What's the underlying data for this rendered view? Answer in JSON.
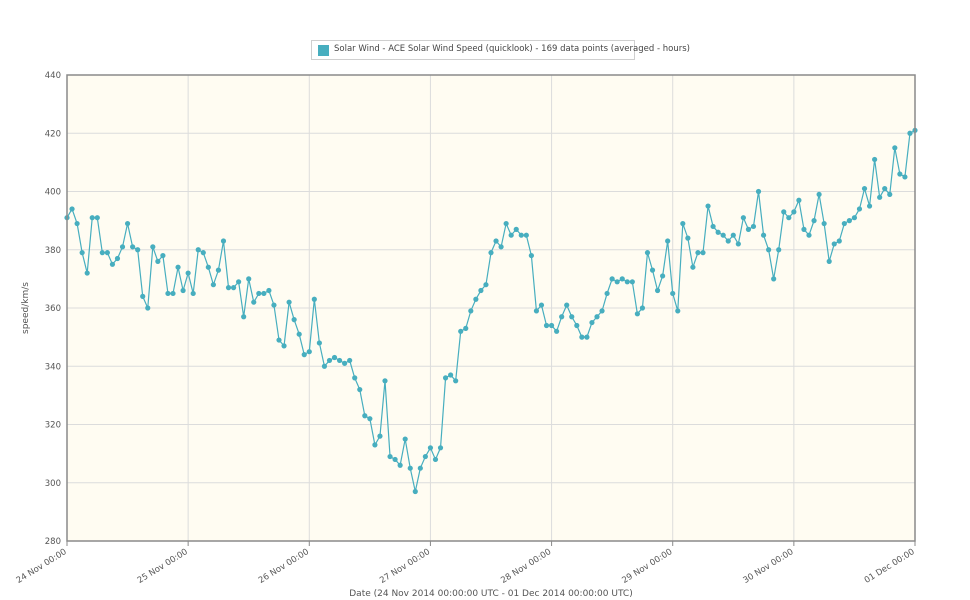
{
  "chart_data": {
    "type": "line",
    "legend": {
      "placement": "top-center",
      "entries": [
        "Solar Wind - ACE Solar Wind Speed (quicklook) - 169 data points (averaged - hours)"
      ]
    },
    "xlabel": "Date (24 Nov 2014 00:00:00 UTC - 01 Dec 2014 00:00:00 UTC)",
    "ylabel": "speed/km/s",
    "ylim": [
      280,
      440
    ],
    "yticks": [
      280,
      300,
      320,
      340,
      360,
      380,
      400,
      420,
      440
    ],
    "xlim": [
      "24 Nov 00:00",
      "01 Dec 00:00"
    ],
    "xticks": [
      "24 Nov 00:00",
      "25 Nov 00:00",
      "26 Nov 00:00",
      "27 Nov 00:00",
      "28 Nov 00:00",
      "29 Nov 00:00",
      "30 Nov 00:00",
      "01 Dec 00:00"
    ],
    "grid": true,
    "x_unit": "hours since 24 Nov 00:00 UTC",
    "series": [
      {
        "color": "#47aebf",
        "values": [
          391,
          394,
          389,
          379,
          372,
          391,
          391,
          379,
          379,
          375,
          377,
          381,
          389,
          381,
          380,
          364,
          360,
          381,
          376,
          378,
          365,
          365,
          374,
          366,
          372,
          365,
          380,
          379,
          374,
          368,
          373,
          383,
          367,
          367,
          369,
          357,
          370,
          362,
          365,
          365,
          366,
          361,
          349,
          347,
          362,
          356,
          351,
          344,
          345,
          363,
          348,
          340,
          342,
          343,
          342,
          341,
          342,
          336,
          332,
          323,
          322,
          313,
          316,
          335,
          309,
          308,
          306,
          315,
          305,
          297,
          305,
          309,
          312,
          308,
          312,
          336,
          337,
          335,
          352,
          353,
          359,
          363,
          366,
          368,
          379,
          383,
          381,
          389,
          385,
          387,
          385,
          385,
          378,
          359,
          361,
          354,
          354,
          352,
          357,
          361,
          357,
          354,
          350,
          350,
          355,
          357,
          359,
          365,
          370,
          369,
          370,
          369,
          369,
          358,
          360,
          379,
          373,
          366,
          371,
          383,
          365,
          359,
          389,
          384,
          374,
          379,
          379,
          395,
          388,
          386,
          385,
          383,
          385,
          382,
          391,
          387,
          388,
          400,
          385,
          380,
          370,
          380,
          393,
          391,
          393,
          397,
          387,
          385,
          390,
          399,
          389,
          376,
          382,
          383,
          389,
          390,
          391,
          394,
          401,
          395,
          411,
          398,
          401,
          399,
          415,
          406,
          405,
          420,
          421
        ]
      }
    ]
  }
}
